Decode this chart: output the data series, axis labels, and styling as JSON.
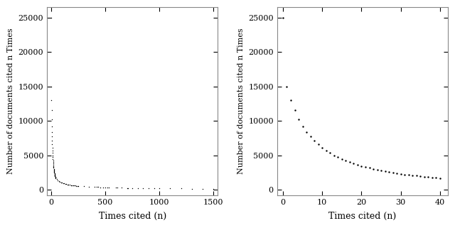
{
  "ylabel": "Number of documents cited n Times",
  "xlabel": "Times cited (n)",
  "plot1_xlim": [
    -40,
    1540
  ],
  "plot1_ylim": [
    -800,
    26500
  ],
  "plot2_xlim": [
    -1.5,
    42
  ],
  "plot2_ylim": [
    -800,
    26500
  ],
  "plot1_xticks": [
    0,
    500,
    1000,
    1500
  ],
  "plot1_yticks": [
    0,
    5000,
    10000,
    15000,
    20000,
    25000
  ],
  "plot2_xticks": [
    0,
    10,
    20,
    30,
    40
  ],
  "plot2_yticks": [
    0,
    5000,
    10000,
    15000,
    20000,
    25000
  ],
  "dot_color": "#000000",
  "background_color": "#ffffff",
  "figure_facecolor": "#ffffff",
  "n_values": [
    0,
    1,
    2,
    3,
    4,
    5,
    6,
    7,
    8,
    9,
    10,
    11,
    12,
    13,
    14,
    15,
    16,
    17,
    18,
    19,
    20,
    21,
    22,
    23,
    24,
    25,
    26,
    27,
    28,
    29,
    30,
    31,
    32,
    33,
    34,
    35,
    36,
    37,
    38,
    39,
    40
  ],
  "y_values": [
    25000,
    15000,
    13000,
    11500,
    10200,
    9200,
    8400,
    7700,
    7100,
    6600,
    6100,
    5700,
    5350,
    5000,
    4700,
    4450,
    4200,
    4000,
    3800,
    3600,
    3450,
    3300,
    3150,
    3020,
    2900,
    2780,
    2670,
    2570,
    2470,
    2380,
    2300,
    2220,
    2150,
    2080,
    2020,
    1960,
    1900,
    1850,
    1800,
    1750,
    1700
  ],
  "left_sparse_x": [
    50,
    60,
    70,
    80,
    90,
    100,
    110,
    120,
    130,
    140,
    150,
    160,
    170,
    180,
    190,
    200,
    210,
    220,
    230,
    240,
    250,
    300,
    350,
    400,
    420,
    430,
    450,
    480,
    500,
    520,
    530,
    600,
    610,
    650,
    700,
    710,
    750,
    800,
    850,
    900,
    950,
    1000,
    1100,
    1200,
    1300,
    1400,
    1500
  ],
  "left_sparse_y": [
    1500,
    1350,
    1250,
    1150,
    1070,
    1000,
    940,
    890,
    840,
    800,
    760,
    730,
    700,
    670,
    650,
    630,
    610,
    590,
    570,
    555,
    540,
    480,
    430,
    390,
    380,
    370,
    360,
    345,
    335,
    325,
    320,
    280,
    278,
    265,
    250,
    248,
    240,
    225,
    215,
    205,
    198,
    190,
    175,
    165,
    155,
    148,
    142
  ]
}
